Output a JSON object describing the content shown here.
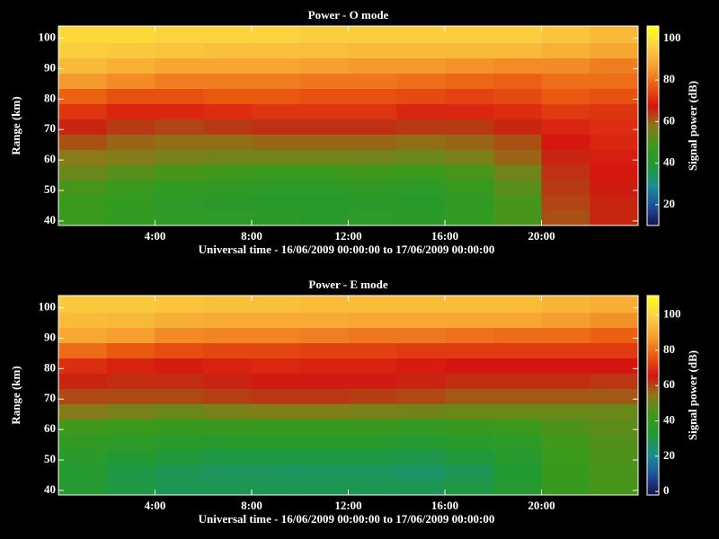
{
  "chart_data": [
    {
      "type": "heatmap",
      "title": "Power - O mode",
      "x_label": "Universal time - 16/06/2009 00:00:00 to 17/06/2009 00:00:00",
      "y_label": "Range (km)",
      "colorbar_label": "Signal power (dB)",
      "xlim": [
        0,
        24
      ],
      "xticks": [
        {
          "value": 4,
          "label": "4:00"
        },
        {
          "value": 8,
          "label": "8:00"
        },
        {
          "value": 12,
          "label": "12:00"
        },
        {
          "value": 16,
          "label": "16:00"
        },
        {
          "value": 20,
          "label": "20:00"
        }
      ],
      "ylim": [
        38.5,
        104
      ],
      "yticks": [
        40,
        50,
        60,
        70,
        80,
        90,
        100
      ],
      "zlim": [
        10,
        106
      ],
      "zticks": [
        20,
        40,
        60,
        80,
        100
      ],
      "colormap": [
        "#14104e",
        "#1e4f9a",
        "#1a8f92",
        "#1f9a34",
        "#3a9a1c",
        "#8a7a18",
        "#d41410",
        "#ea5a10",
        "#f6a030",
        "#fbd040",
        "#ffff18"
      ],
      "x_bins": [
        0,
        2,
        4,
        6,
        8,
        10,
        12,
        14,
        16,
        18,
        20,
        22,
        24
      ],
      "y_bins": [
        38.5,
        43.5,
        48.5,
        53.5,
        58.5,
        63.5,
        68.5,
        73.5,
        78.5,
        83.5,
        88.5,
        93.5,
        98.5,
        104
      ],
      "z": [
        [
          48,
          46,
          45,
          44,
          43,
          42,
          44,
          43,
          46,
          50,
          62,
          66
        ],
        [
          48,
          46,
          44,
          43,
          42,
          42,
          43,
          42,
          45,
          50,
          63,
          66
        ],
        [
          50,
          48,
          46,
          45,
          44,
          44,
          45,
          44,
          47,
          52,
          64,
          67
        ],
        [
          54,
          52,
          50,
          49,
          48,
          48,
          49,
          48,
          50,
          55,
          65,
          68
        ],
        [
          58,
          57,
          56,
          55,
          55,
          55,
          55,
          54,
          56,
          60,
          66,
          69
        ],
        [
          62,
          60,
          59,
          59,
          60,
          60,
          60,
          59,
          60,
          62,
          68,
          70
        ],
        [
          66,
          64,
          63,
          64,
          65,
          65,
          65,
          64,
          64,
          66,
          70,
          71
        ],
        [
          72,
          70,
          70,
          71,
          72,
          72,
          72,
          70,
          70,
          71,
          73,
          72
        ],
        [
          78,
          76,
          76,
          77,
          77,
          76,
          76,
          75,
          74,
          75,
          77,
          76
        ],
        [
          86,
          84,
          82,
          82,
          82,
          81,
          81,
          80,
          79,
          78,
          80,
          80
        ],
        [
          92,
          90,
          88,
          88,
          88,
          87,
          86,
          86,
          85,
          84,
          84,
          82
        ],
        [
          96,
          95,
          94,
          93,
          93,
          93,
          92,
          92,
          92,
          92,
          90,
          88
        ],
        [
          98,
          98,
          97,
          97,
          97,
          96,
          96,
          96,
          96,
          96,
          94,
          92
        ]
      ]
    },
    {
      "type": "heatmap",
      "title": "Power - E mode",
      "x_label": "Universal time - 16/06/2009 00:00:00 to 17/06/2009 00:00:00",
      "y_label": "Range (km)",
      "colorbar_label": "Signal power (dB)",
      "xlim": [
        0,
        24
      ],
      "xticks": [
        {
          "value": 4,
          "label": "4:00"
        },
        {
          "value": 8,
          "label": "8:00"
        },
        {
          "value": 12,
          "label": "12:00"
        },
        {
          "value": 16,
          "label": "16:00"
        },
        {
          "value": 20,
          "label": "20:00"
        }
      ],
      "ylim": [
        38.5,
        104
      ],
      "yticks": [
        40,
        50,
        60,
        70,
        80,
        90,
        100
      ],
      "zlim": [
        -2,
        111
      ],
      "zticks": [
        0,
        20,
        40,
        60,
        80,
        100
      ],
      "colormap": [
        "#14104e",
        "#1e4f9a",
        "#1a8f92",
        "#1f9a34",
        "#3a9a1c",
        "#8a7a18",
        "#d41410",
        "#ea5a10",
        "#f6a030",
        "#fbd040",
        "#ffff18"
      ],
      "x_bins": [
        0,
        2,
        4,
        6,
        8,
        10,
        12,
        14,
        16,
        18,
        20,
        22,
        24
      ],
      "y_bins": [
        38.5,
        43.5,
        48.5,
        53.5,
        58.5,
        63.5,
        68.5,
        73.5,
        78.5,
        83.5,
        88.5,
        93.5,
        98.5,
        104
      ],
      "z": [
        [
          34,
          30,
          28,
          28,
          28,
          28,
          28,
          28,
          30,
          34,
          42,
          45
        ],
        [
          34,
          30,
          28,
          27,
          27,
          27,
          27,
          26,
          28,
          33,
          42,
          45
        ],
        [
          36,
          33,
          31,
          30,
          30,
          30,
          30,
          29,
          31,
          35,
          43,
          46
        ],
        [
          40,
          38,
          36,
          35,
          35,
          35,
          35,
          34,
          36,
          38,
          44,
          47
        ],
        [
          44,
          43,
          42,
          42,
          42,
          42,
          42,
          41,
          42,
          43,
          46,
          48
        ],
        [
          54,
          52,
          50,
          52,
          53,
          53,
          52,
          51,
          50,
          50,
          50,
          50
        ],
        [
          60,
          60,
          60,
          61,
          62,
          62,
          61,
          60,
          58,
          58,
          58,
          58
        ],
        [
          64,
          63,
          63,
          64,
          65,
          65,
          65,
          64,
          63,
          63,
          63,
          62
        ],
        [
          70,
          68,
          67,
          68,
          69,
          68,
          68,
          67,
          66,
          66,
          66,
          66
        ],
        [
          80,
          77,
          75,
          74,
          74,
          73,
          73,
          72,
          72,
          72,
          72,
          72
        ],
        [
          90,
          88,
          85,
          84,
          84,
          83,
          82,
          82,
          81,
          80,
          80,
          78
        ],
        [
          95,
          94,
          92,
          91,
          91,
          91,
          90,
          90,
          90,
          90,
          88,
          86
        ],
        [
          98,
          98,
          97,
          96,
          96,
          95,
          95,
          95,
          95,
          95,
          93,
          92
        ]
      ]
    }
  ]
}
